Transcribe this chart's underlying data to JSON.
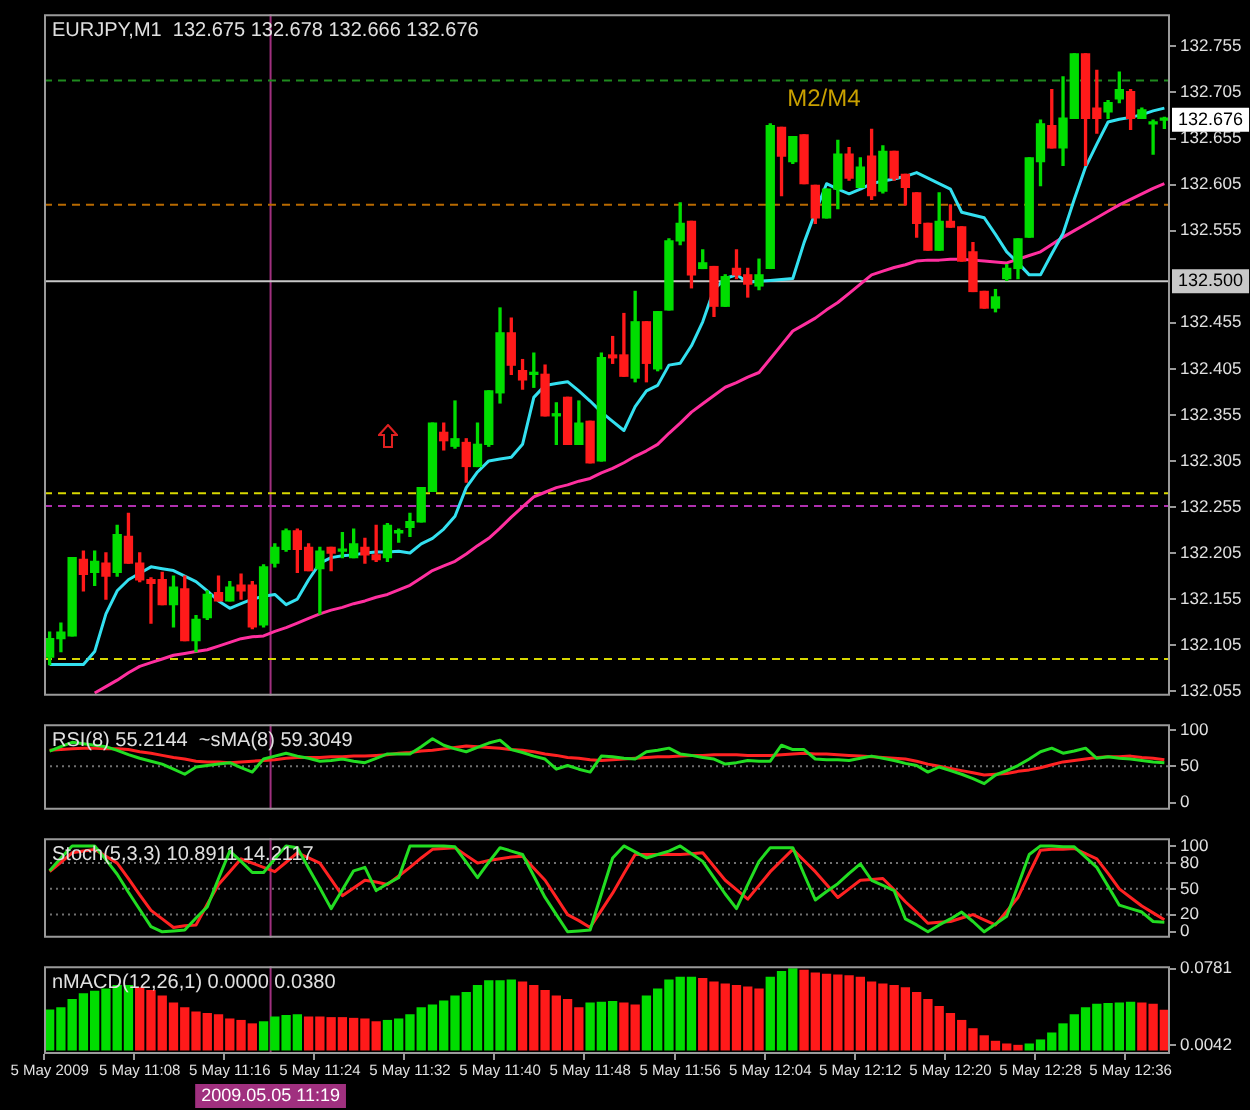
{
  "chart_data": [
    {
      "type": "candlestick",
      "title": "EURJPY,M1  132.675 132.678 132.666 132.676",
      "tick_labels": "y",
      "categories": [
        null,
        null,
        null,
        null,
        null,
        null,
        null,
        null,
        null,
        null,
        null,
        null,
        null,
        null,
        null,
        null,
        null,
        null,
        null,
        null,
        null,
        null,
        null,
        null,
        null,
        null,
        null,
        null,
        null,
        null,
        null,
        null,
        null,
        null,
        null,
        null,
        null,
        null,
        null,
        null,
        null,
        null,
        null,
        null,
        null,
        null,
        null,
        null,
        null,
        null,
        null,
        null,
        null,
        null,
        null,
        null,
        null,
        null,
        null,
        null,
        null,
        null,
        null,
        null,
        null,
        null,
        null,
        null,
        null,
        null,
        null,
        null,
        null,
        null,
        null,
        null,
        null,
        null,
        null,
        null,
        null,
        null,
        null,
        null,
        null,
        null,
        null,
        null,
        null,
        null,
        null,
        null,
        null,
        null,
        null,
        null,
        null,
        null,
        null,
        null
      ],
      "ohlc": [
        [
          132.092,
          132.119,
          132.084,
          132.112
        ],
        [
          132.112,
          132.129,
          132.098,
          132.119
        ],
        [
          132.115,
          132.2,
          132.115,
          132.2
        ],
        [
          132.198,
          132.207,
          132.164,
          132.182
        ],
        [
          132.184,
          132.207,
          132.17,
          132.196
        ],
        [
          132.194,
          132.205,
          132.155,
          132.18
        ],
        [
          132.184,
          132.235,
          132.18,
          132.225
        ],
        [
          132.223,
          132.248,
          132.194,
          132.194
        ],
        [
          132.194,
          132.205,
          132.174,
          132.176
        ],
        [
          132.176,
          132.178,
          132.129,
          132.172
        ],
        [
          132.176,
          132.184,
          132.149,
          132.149
        ],
        [
          132.149,
          132.18,
          132.125,
          132.168
        ],
        [
          132.166,
          132.18,
          132.11,
          132.11
        ],
        [
          132.11,
          132.137,
          132.098,
          132.133
        ],
        [
          132.135,
          132.164,
          132.133,
          132.16
        ],
        [
          132.162,
          132.18,
          132.153,
          132.153
        ],
        [
          132.153,
          132.174,
          132.153,
          132.168
        ],
        [
          132.17,
          132.182,
          132.155,
          132.164
        ],
        [
          132.17,
          132.174,
          132.123,
          132.125
        ],
        [
          132.127,
          132.192,
          132.125,
          132.19
        ],
        [
          132.194,
          132.215,
          132.19,
          132.211
        ],
        [
          132.209,
          132.231,
          132.207,
          132.229
        ],
        [
          132.229,
          132.231,
          132.184,
          132.209
        ],
        [
          132.211,
          132.215,
          132.186,
          132.186
        ],
        [
          132.188,
          132.211,
          132.139,
          132.207
        ],
        [
          132.211,
          132.211,
          132.186,
          132.205
        ],
        [
          132.207,
          132.227,
          132.2,
          132.209
        ],
        [
          132.2,
          132.231,
          132.2,
          132.215
        ],
        [
          132.211,
          132.221,
          132.194,
          132.203
        ],
        [
          132.203,
          132.235,
          132.196,
          132.198
        ],
        [
          132.2,
          132.237,
          132.196,
          132.235
        ],
        [
          132.227,
          132.231,
          132.217,
          132.229
        ],
        [
          132.233,
          132.248,
          132.223,
          132.239
        ],
        [
          132.239,
          132.276,
          132.239,
          132.276
        ],
        [
          132.272,
          132.346,
          132.272,
          132.346
        ],
        [
          132.336,
          132.346,
          132.317,
          132.327
        ],
        [
          132.321,
          132.37,
          132.319,
          132.329
        ],
        [
          132.325,
          132.329,
          132.282,
          132.299
        ],
        [
          132.299,
          132.346,
          132.299,
          132.323
        ],
        [
          132.323,
          132.381,
          132.321,
          132.381
        ],
        [
          132.379,
          132.471,
          132.368,
          132.444
        ],
        [
          132.444,
          132.46,
          132.399,
          132.409
        ],
        [
          132.403,
          132.415,
          132.383,
          132.393
        ],
        [
          132.399,
          132.422,
          132.385,
          132.401
        ],
        [
          132.399,
          132.409,
          132.354,
          132.354
        ],
        [
          132.354,
          132.368,
          132.323,
          132.356
        ],
        [
          132.374,
          132.374,
          132.323,
          132.323
        ],
        [
          132.323,
          132.37,
          132.323,
          132.346
        ],
        [
          132.348,
          132.348,
          132.303,
          132.303
        ],
        [
          132.305,
          132.422,
          132.305,
          132.417
        ],
        [
          132.42,
          132.44,
          132.411,
          132.417
        ],
        [
          132.42,
          132.465,
          132.397,
          132.397
        ],
        [
          132.395,
          132.489,
          132.391,
          132.456
        ],
        [
          132.456,
          132.456,
          132.391,
          132.411
        ],
        [
          132.405,
          132.467,
          132.403,
          132.467
        ],
        [
          132.469,
          132.546,
          132.469,
          132.544
        ],
        [
          132.544,
          132.585,
          132.54,
          132.563
        ],
        [
          132.565,
          132.565,
          132.493,
          132.507
        ],
        [
          132.514,
          132.534,
          132.514,
          132.52
        ],
        [
          132.516,
          132.516,
          132.462,
          132.473
        ],
        [
          132.473,
          132.507,
          132.473,
          132.505
        ],
        [
          132.514,
          132.534,
          132.503,
          132.507
        ],
        [
          132.507,
          132.514,
          132.483,
          132.497
        ],
        [
          132.495,
          132.524,
          132.491,
          132.507
        ],
        [
          132.514,
          132.671,
          132.514,
          132.669
        ],
        [
          132.667,
          132.667,
          132.593,
          132.636
        ],
        [
          132.63,
          132.657,
          132.628,
          132.657
        ],
        [
          132.659,
          132.659,
          132.606,
          132.606
        ],
        [
          132.604,
          132.604,
          132.563,
          132.569
        ],
        [
          132.569,
          132.6,
          132.569,
          132.6
        ],
        [
          132.6,
          132.653,
          132.579,
          132.638
        ],
        [
          132.638,
          132.645,
          132.61,
          132.612
        ],
        [
          132.602,
          132.634,
          132.602,
          132.624
        ],
        [
          132.636,
          132.665,
          132.589,
          132.593
        ],
        [
          132.598,
          132.647,
          132.596,
          132.641
        ],
        [
          132.641,
          132.641,
          132.61,
          132.612
        ],
        [
          132.616,
          132.616,
          132.583,
          132.602
        ],
        [
          132.596,
          132.596,
          132.548,
          132.563
        ],
        [
          132.563,
          132.563,
          132.534,
          132.534
        ],
        [
          132.534,
          132.596,
          132.534,
          132.565
        ],
        [
          132.565,
          132.583,
          132.559,
          132.559
        ],
        [
          132.559,
          132.559,
          132.522,
          132.522
        ],
        [
          132.532,
          132.542,
          132.489,
          132.489
        ],
        [
          132.489,
          132.489,
          132.471,
          132.471
        ],
        [
          132.471,
          132.491,
          132.467,
          132.483
        ],
        [
          132.503,
          132.518,
          132.501,
          132.514
        ],
        [
          132.514,
          132.546,
          132.503,
          132.546
        ],
        [
          132.548,
          132.634,
          132.548,
          132.634
        ],
        [
          132.63,
          132.675,
          132.604,
          132.671
        ],
        [
          132.669,
          132.708,
          132.645,
          132.645
        ],
        [
          132.645,
          132.722,
          132.626,
          132.677
        ],
        [
          132.677,
          132.747,
          132.677,
          132.747
        ],
        [
          132.747,
          132.747,
          132.626,
          132.677
        ],
        [
          132.688,
          132.729,
          132.661,
          132.677
        ],
        [
          132.684,
          132.696,
          132.677,
          132.694
        ],
        [
          132.698,
          132.727,
          132.694,
          132.708
        ],
        [
          132.706,
          132.708,
          132.665,
          132.677
        ],
        [
          132.677,
          132.688,
          132.677,
          132.686
        ],
        [
          132.671,
          132.675,
          132.638,
          132.673
        ],
        [
          132.675,
          132.678,
          132.666,
          132.676
        ]
      ],
      "colors": [
        "#00dd00",
        "#00dd00",
        "#00dd00",
        "#ff1a1a",
        "#00dd00",
        "#ff1a1a",
        "#00dd00",
        "#ff1a1a",
        "#ff1a1a",
        "#ff1a1a",
        "#ff1a1a",
        "#00dd00",
        "#ff1a1a",
        "#00dd00",
        "#00dd00",
        "#ff1a1a",
        "#00dd00",
        "#ff1a1a",
        "#ff1a1a",
        "#00dd00",
        "#00dd00",
        "#00dd00",
        "#ff1a1a",
        "#ff1a1a",
        "#00dd00",
        "#ff1a1a",
        "#00dd00",
        "#00dd00",
        "#ff1a1a",
        "#ff1a1a",
        "#00dd00",
        "#00dd00",
        "#00dd00",
        "#00dd00",
        "#00dd00",
        "#ff1a1a",
        "#00dd00",
        "#ff1a1a",
        "#00dd00",
        "#00dd00",
        "#00dd00",
        "#ff1a1a",
        "#ff1a1a",
        "#00dd00",
        "#ff1a1a",
        "#00dd00",
        "#ff1a1a",
        "#00dd00",
        "#ff1a1a",
        "#00dd00",
        "#ff1a1a",
        "#ff1a1a",
        "#00dd00",
        "#ff1a1a",
        "#00dd00",
        "#00dd00",
        "#00dd00",
        "#ff1a1a",
        "#00dd00",
        "#ff1a1a",
        "#00dd00",
        "#ff1a1a",
        "#ff1a1a",
        "#00dd00",
        "#00dd00",
        "#ff1a1a",
        "#00dd00",
        "#ff1a1a",
        "#ff1a1a",
        "#00dd00",
        "#00dd00",
        "#ff1a1a",
        "#00dd00",
        "#ff1a1a",
        "#00dd00",
        "#ff1a1a",
        "#ff1a1a",
        "#ff1a1a",
        "#ff1a1a",
        "#00dd00",
        "#ff1a1a",
        "#ff1a1a",
        "#ff1a1a",
        "#ff1a1a",
        "#00dd00",
        "#00dd00",
        "#00dd00",
        "#00dd00",
        "#00dd00",
        "#ff1a1a",
        "#00dd00",
        "#00dd00",
        "#ff1a1a",
        "#ff1a1a",
        "#00dd00",
        "#00dd00",
        "#ff1a1a",
        "#00dd00",
        "#00dd00",
        "#00dd00"
      ],
      "series": [
        {
          "type": "line",
          "color": "#33e0f0",
          "values": [
            132.084,
            132.084,
            132.084,
            132.084,
            132.098,
            132.139,
            132.164,
            132.176,
            132.183,
            132.19,
            132.188,
            132.186,
            132.18,
            132.174,
            132.164,
            132.153,
            132.145,
            132.15,
            132.155,
            132.158,
            132.16,
            132.149,
            132.155,
            132.176,
            132.194,
            132.2,
            132.202,
            132.203,
            132.205,
            132.206,
            132.206,
            132.207,
            132.205,
            132.215,
            132.221,
            132.231,
            132.245,
            132.276,
            132.293,
            132.305,
            132.307,
            132.309,
            132.323,
            132.374,
            132.387,
            132.389,
            132.391,
            132.381,
            132.37,
            132.358,
            132.348,
            132.338,
            132.364,
            132.381,
            132.387,
            132.409,
            132.411,
            132.43,
            132.456,
            132.491,
            132.503,
            132.507,
            132.499,
            132.5,
            132.501,
            132.502,
            132.503,
            132.542,
            132.575,
            132.606,
            132.6,
            132.595,
            132.6,
            132.606,
            132.609,
            132.611,
            132.614,
            132.618,
            132.612,
            132.606,
            132.6,
            132.575,
            132.572,
            132.569,
            132.551,
            132.532,
            132.52,
            132.507,
            132.507,
            132.53,
            132.552,
            132.589,
            132.624,
            132.649,
            132.673,
            132.676,
            132.678,
            132.681,
            132.685,
            132.688
          ]
        },
        {
          "type": "line",
          "color": "#ff2f9f",
          "values": [
            null,
            null,
            null,
            null,
            132.053,
            132.06,
            132.067,
            132.075,
            132.082,
            132.086,
            132.09,
            132.094,
            132.096,
            132.098,
            132.1,
            132.104,
            132.108,
            132.112,
            132.114,
            132.115,
            132.12,
            132.124,
            132.129,
            132.134,
            132.139,
            132.143,
            132.146,
            132.15,
            132.153,
            132.157,
            132.16,
            132.165,
            132.17,
            132.178,
            132.186,
            132.191,
            132.196,
            132.204,
            132.213,
            132.221,
            132.232,
            132.244,
            132.255,
            132.266,
            132.271,
            132.276,
            132.279,
            132.283,
            132.286,
            132.292,
            132.297,
            132.303,
            132.31,
            132.316,
            132.323,
            132.335,
            132.346,
            132.358,
            132.367,
            132.376,
            132.385,
            132.39,
            132.396,
            132.401,
            132.416,
            132.431,
            132.446,
            132.453,
            132.46,
            132.469,
            132.477,
            132.487,
            132.497,
            132.507,
            132.511,
            132.515,
            132.518,
            132.522,
            132.523,
            132.523,
            132.524,
            132.524,
            132.523,
            132.522,
            132.521,
            132.52,
            132.524,
            132.528,
            132.532,
            132.54,
            132.548,
            132.555,
            132.562,
            132.569,
            132.576,
            132.583,
            132.589,
            132.595,
            132.601,
            132.606
          ]
        }
      ],
      "ylim": [
        132.05,
        132.79
      ],
      "yticks": [
        132.055,
        132.105,
        132.155,
        132.205,
        132.255,
        132.305,
        132.355,
        132.405,
        132.455,
        132.555,
        132.605,
        132.655,
        132.705,
        132.755
      ],
      "ref_lines": [
        {
          "axis": "y",
          "value": 132.718,
          "color": "#1f8a1f",
          "line_style": "dashed"
        },
        {
          "axis": "y",
          "value": 132.583,
          "color": "#b86a00",
          "line_style": "dashed"
        },
        {
          "axis": "y",
          "value": 132.5,
          "label": "132.500",
          "color": "#c8c8c8"
        },
        {
          "axis": "y",
          "value": 132.27,
          "color": "#d8d800",
          "line_style": "dashed"
        },
        {
          "axis": "y",
          "value": 132.256,
          "color": "#b030b0",
          "line_style": "dashed"
        },
        {
          "axis": "y",
          "value": 132.09,
          "color": "#d8d800",
          "line_style": "dashed"
        }
      ],
      "annotations": [
        "M2/M4",
        "132.676"
      ]
    },
    {
      "type": "line",
      "title": "RSI(8) 55.2144  ~sMA(8) 59.3049",
      "tick_labels": "y",
      "categories": [
        null,
        null,
        null,
        null,
        null,
        null,
        null,
        null,
        null,
        null,
        null,
        null,
        null,
        null,
        null,
        null,
        null,
        null,
        null,
        null,
        null,
        null,
        null,
        null,
        null,
        null,
        null,
        null,
        null,
        null,
        null,
        null,
        null,
        null,
        null,
        null,
        null,
        null,
        null,
        null,
        null,
        null,
        null,
        null,
        null,
        null,
        null,
        null,
        null,
        null,
        null,
        null,
        null,
        null,
        null,
        null,
        null,
        null,
        null,
        null,
        null,
        null,
        null,
        null,
        null,
        null,
        null,
        null,
        null,
        null,
        null,
        null,
        null,
        null,
        null,
        null,
        null,
        null,
        null,
        null,
        null,
        null,
        null,
        null,
        null,
        null,
        null,
        null,
        null,
        null,
        null,
        null,
        null,
        null,
        null,
        null,
        null,
        null,
        null,
        null
      ],
      "series": [
        {
          "color": "#22dd22",
          "values": [
            71,
            77,
            83,
            81,
            79,
            77,
            72,
            66,
            61,
            57,
            53,
            46,
            39,
            49,
            51,
            53,
            55,
            48,
            42,
            60,
            64,
            68,
            64,
            61,
            57,
            58,
            60,
            57,
            55,
            61,
            67,
            67,
            67,
            77,
            88,
            79,
            74,
            70,
            76,
            82,
            86,
            73,
            69,
            64,
            60,
            46,
            51,
            46,
            42,
            64,
            63,
            61,
            60,
            70,
            72,
            75,
            67,
            65,
            62,
            60,
            53,
            55,
            58,
            57,
            57,
            79,
            73,
            73,
            60,
            59,
            59,
            58,
            61,
            64,
            61,
            58,
            54,
            51,
            42,
            49,
            44,
            39,
            33,
            26,
            38,
            44,
            51,
            60,
            70,
            75,
            68,
            71,
            75,
            61,
            63,
            61,
            60,
            58,
            56,
            55
          ]
        },
        {
          "color": "#ff2222",
          "values": [
            72,
            73,
            74,
            75,
            75,
            74,
            74,
            73,
            70,
            68,
            65,
            62,
            60,
            57,
            56,
            56,
            55,
            56,
            57,
            58,
            59,
            61,
            62,
            62,
            62,
            63,
            63,
            64,
            64,
            65,
            66,
            68,
            69,
            71,
            72,
            74,
            76,
            78,
            77,
            76,
            75,
            73,
            72,
            70,
            67,
            65,
            62,
            61,
            59,
            58,
            59,
            60,
            61,
            62,
            63,
            63,
            64,
            65,
            65,
            66,
            66,
            66,
            65,
            65,
            65,
            66,
            67,
            68,
            67,
            67,
            66,
            65,
            64,
            63,
            62,
            61,
            60,
            57,
            53,
            50,
            47,
            44,
            41,
            38,
            39,
            40,
            43,
            45,
            48,
            52,
            56,
            58,
            60,
            62,
            63,
            63,
            64,
            62,
            61,
            59
          ]
        }
      ],
      "ylim": [
        -10,
        108
      ],
      "yticks": [
        0,
        50,
        100
      ],
      "ref_lines": [
        {
          "axis": "y",
          "value": 50,
          "color": "#707070",
          "line_style": "dotted"
        }
      ]
    },
    {
      "type": "line",
      "title": "Stoch(5,3,3) 10.8911 14.2117",
      "tick_labels": "y",
      "categories": [
        null,
        null,
        null,
        null,
        null,
        null,
        null,
        null,
        null,
        null,
        null,
        null,
        null,
        null,
        null,
        null,
        null,
        null,
        null,
        null,
        null,
        null,
        null,
        null,
        null,
        null,
        null,
        null,
        null,
        null,
        null,
        null,
        null,
        null,
        null,
        null,
        null,
        null,
        null,
        null,
        null,
        null,
        null,
        null,
        null,
        null,
        null,
        null,
        null,
        null,
        null,
        null,
        null,
        null,
        null,
        null,
        null,
        null,
        null,
        null,
        null,
        null,
        null,
        null,
        null,
        null,
        null,
        null,
        null,
        null,
        null,
        null,
        null,
        null,
        null,
        null,
        null,
        null,
        null,
        null,
        null,
        null,
        null,
        null,
        null,
        null,
        null,
        null,
        null,
        null,
        null,
        null,
        null,
        null,
        null,
        null,
        null,
        null,
        null,
        null
      ],
      "series": [
        {
          "color": "#22dd22",
          "values": [
            71,
            86,
            100,
            100,
            100,
            84,
            67,
            46,
            26,
            6,
            0,
            1,
            2,
            16,
            29,
            62,
            94,
            82,
            69,
            69,
            85,
            100,
            98,
            74,
            51,
            27,
            49,
            71,
            75,
            48,
            56,
            63,
            100,
            100,
            100,
            100,
            99,
            81,
            63,
            81,
            98,
            94,
            90,
            65,
            40,
            20,
            0,
            1,
            2,
            44,
            86,
            100,
            93,
            86,
            90,
            94,
            100,
            91,
            82,
            63,
            44,
            27,
            55,
            82,
            98,
            98,
            98,
            67,
            37,
            47,
            56,
            68,
            79,
            60,
            54,
            48,
            15,
            8,
            0,
            8,
            15,
            23,
            12,
            0,
            9,
            18,
            54,
            90,
            100,
            100,
            99,
            99,
            87,
            75,
            53,
            31,
            27,
            23,
            12,
            11
          ]
        },
        {
          "color": "#ff2222",
          "values": [
            70,
            81,
            92,
            94,
            96,
            88,
            80,
            62,
            43,
            25,
            15,
            5,
            7,
            8,
            32,
            55,
            70,
            85,
            80,
            75,
            70,
            81,
            92,
            86,
            80,
            61,
            42,
            51,
            60,
            58,
            55,
            65,
            75,
            86,
            96,
            97,
            98,
            89,
            80,
            83,
            85,
            87,
            88,
            74,
            60,
            40,
            20,
            13,
            5,
            25,
            45,
            68,
            90,
            90,
            90,
            90,
            90,
            91,
            92,
            76,
            60,
            49,
            38,
            54,
            70,
            83,
            96,
            83,
            70,
            55,
            40,
            50,
            60,
            61,
            62,
            49,
            35,
            23,
            10,
            11,
            12,
            16,
            20,
            14,
            8,
            24,
            40,
            68,
            95,
            96,
            96,
            97,
            91,
            85,
            68,
            50,
            40,
            30,
            22,
            14
          ]
        }
      ],
      "ylim": [
        -7,
        109
      ],
      "yticks": [
        0,
        20,
        50,
        80,
        100
      ],
      "ref_lines": [
        {
          "axis": "y",
          "value": 20,
          "color": "#707070",
          "line_style": "dotted"
        },
        {
          "axis": "y",
          "value": 50,
          "color": "#707070",
          "line_style": "dotted"
        },
        {
          "axis": "y",
          "value": 80,
          "color": "#707070",
          "line_style": "dotted"
        }
      ]
    },
    {
      "type": "bar",
      "title": "nMACD(12,26,1) 0.0000 0.0380",
      "categories": [
        "5 May 2009",
        null,
        null,
        null,
        null,
        null,
        null,
        null,
        "5 May 11:08",
        null,
        null,
        null,
        null,
        null,
        null,
        null,
        "5 May 11:16",
        null,
        null,
        null,
        null,
        null,
        null,
        null,
        "5 May 11:24",
        null,
        null,
        null,
        null,
        null,
        null,
        null,
        "5 May 11:32",
        null,
        null,
        null,
        null,
        null,
        null,
        null,
        "5 May 11:40",
        null,
        null,
        null,
        null,
        null,
        null,
        null,
        "5 May 11:48",
        null,
        null,
        null,
        null,
        null,
        null,
        null,
        "5 May 11:56",
        null,
        null,
        null,
        null,
        null,
        null,
        null,
        "5 May 12:04",
        null,
        null,
        null,
        null,
        null,
        null,
        null,
        "5 May 12:12",
        null,
        null,
        null,
        null,
        null,
        null,
        null,
        "5 May 12:20",
        null,
        null,
        null,
        null,
        null,
        null,
        null,
        "5 May 12:28",
        null,
        null,
        null,
        null,
        null,
        null,
        null,
        "5 May 12:36",
        null,
        null,
        null
      ],
      "values": [
        0.0383,
        0.0403,
        0.0484,
        0.0538,
        0.0564,
        0.0585,
        0.0618,
        0.0618,
        0.0598,
        0.0571,
        0.0517,
        0.045,
        0.0403,
        0.0363,
        0.0349,
        0.0336,
        0.0296,
        0.0282,
        0.0249,
        0.0269,
        0.0316,
        0.0329,
        0.0336,
        0.0316,
        0.0316,
        0.0309,
        0.0309,
        0.0302,
        0.0296,
        0.0269,
        0.0282,
        0.0296,
        0.0336,
        0.0403,
        0.043,
        0.047,
        0.0517,
        0.0551,
        0.0618,
        0.0665,
        0.0665,
        0.0672,
        0.0652,
        0.0618,
        0.0571,
        0.0517,
        0.0484,
        0.0403,
        0.045,
        0.0457,
        0.0464,
        0.045,
        0.043,
        0.0517,
        0.0585,
        0.0672,
        0.0699,
        0.0699,
        0.0685,
        0.0652,
        0.0632,
        0.0618,
        0.0605,
        0.0585,
        0.0699,
        0.0753,
        0.0781,
        0.0766,
        0.0739,
        0.0726,
        0.0719,
        0.0712,
        0.0699,
        0.0652,
        0.0632,
        0.0618,
        0.0598,
        0.0551,
        0.0484,
        0.0417,
        0.0349,
        0.0282,
        0.0202,
        0.0134,
        0.0081,
        0.0055,
        0.0042,
        0.0055,
        0.0094,
        0.0161,
        0.0249,
        0.0336,
        0.0403,
        0.0437,
        0.0444,
        0.045,
        0.0457,
        0.045,
        0.0437,
        0.038
      ],
      "colors": [
        "#00dd00",
        "#00dd00",
        "#00dd00",
        "#00dd00",
        "#00dd00",
        "#00dd00",
        "#00dd00",
        "#00dd00",
        "#ff1a1a",
        "#ff1a1a",
        "#ff1a1a",
        "#ff1a1a",
        "#ff1a1a",
        "#ff1a1a",
        "#ff1a1a",
        "#ff1a1a",
        "#ff1a1a",
        "#ff1a1a",
        "#ff1a1a",
        "#00dd00",
        "#00dd00",
        "#00dd00",
        "#00dd00",
        "#ff1a1a",
        "#ff1a1a",
        "#ff1a1a",
        "#ff1a1a",
        "#ff1a1a",
        "#ff1a1a",
        "#ff1a1a",
        "#00dd00",
        "#00dd00",
        "#00dd00",
        "#00dd00",
        "#00dd00",
        "#00dd00",
        "#00dd00",
        "#00dd00",
        "#00dd00",
        "#00dd00",
        "#00dd00",
        "#00dd00",
        "#ff1a1a",
        "#ff1a1a",
        "#ff1a1a",
        "#ff1a1a",
        "#ff1a1a",
        "#ff1a1a",
        "#00dd00",
        "#00dd00",
        "#00dd00",
        "#ff1a1a",
        "#ff1a1a",
        "#00dd00",
        "#00dd00",
        "#00dd00",
        "#00dd00",
        "#00dd00",
        "#ff1a1a",
        "#ff1a1a",
        "#ff1a1a",
        "#ff1a1a",
        "#ff1a1a",
        "#ff1a1a",
        "#00dd00",
        "#00dd00",
        "#00dd00",
        "#ff1a1a",
        "#ff1a1a",
        "#ff1a1a",
        "#ff1a1a",
        "#ff1a1a",
        "#ff1a1a",
        "#ff1a1a",
        "#ff1a1a",
        "#ff1a1a",
        "#ff1a1a",
        "#ff1a1a",
        "#ff1a1a",
        "#ff1a1a",
        "#ff1a1a",
        "#ff1a1a",
        "#ff1a1a",
        "#ff1a1a",
        "#ff1a1a",
        "#ff1a1a",
        "#ff1a1a",
        "#00dd00",
        "#00dd00",
        "#00dd00",
        "#00dd00",
        "#00dd00",
        "#00dd00",
        "#00dd00",
        "#00dd00",
        "#00dd00",
        "#00dd00",
        "#ff1a1a",
        "#ff1a1a",
        "#ff1a1a"
      ],
      "ylim": [
        -0.004,
        0.0806
      ],
      "yticks": [
        0.0781,
        0.0042
      ],
      "annotations": [
        "2009.05.05 11:19"
      ]
    }
  ]
}
